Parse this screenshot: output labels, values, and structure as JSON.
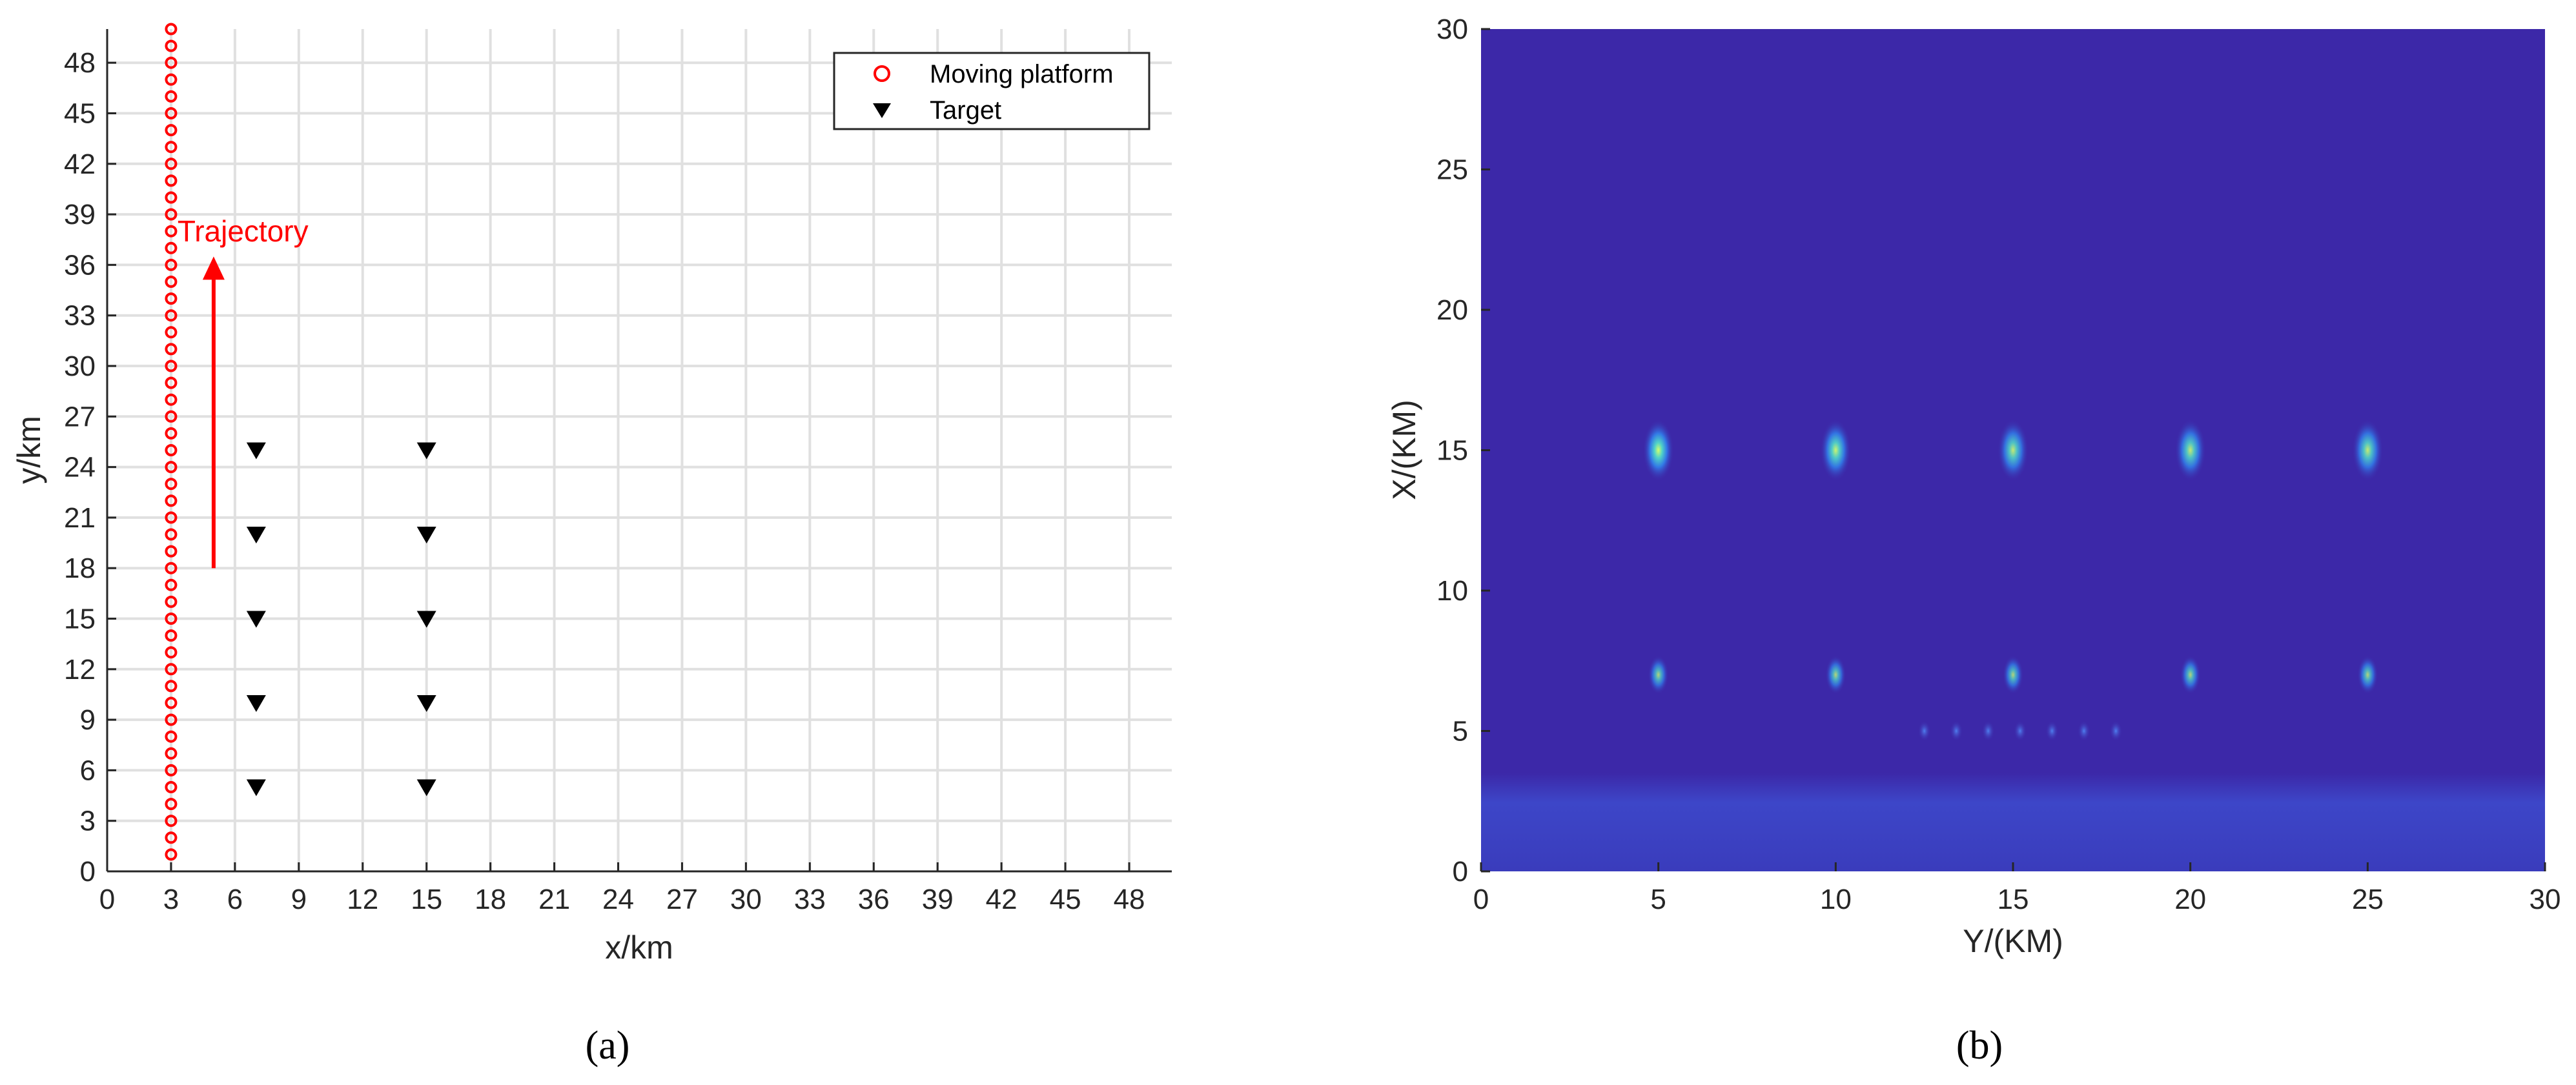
{
  "colors": {
    "platform": "#ff0000",
    "target": "#000000",
    "grid": "#e0e0e0",
    "axis": "#262626",
    "heatmap_background": "#3c28a8",
    "heatmap_peak": "#b4ff78"
  },
  "chart_data": [
    {
      "type": "scatter",
      "caption": "(a)",
      "xlabel": "x/km",
      "ylabel": "y/km",
      "xlim": [
        0,
        50
      ],
      "ylim": [
        0,
        50
      ],
      "xticks": [
        "0",
        "3",
        "6",
        "9",
        "12",
        "15",
        "18",
        "21",
        "24",
        "27",
        "30",
        "33",
        "36",
        "39",
        "42",
        "45",
        "48"
      ],
      "yticks": [
        "0",
        "3",
        "6",
        "9",
        "12",
        "15",
        "18",
        "21",
        "24",
        "27",
        "30",
        "33",
        "36",
        "39",
        "42",
        "45",
        "48"
      ],
      "grid": true,
      "legend_position": "top-right",
      "series": [
        {
          "name": "Moving platform",
          "marker": "circle-open",
          "x": [
            3
          ],
          "y_start": 1,
          "y_end": 50,
          "y_step": 1
        },
        {
          "name": "Target",
          "marker": "triangle-down",
          "points": [
            [
              7,
              5
            ],
            [
              7,
              10
            ],
            [
              7,
              15
            ],
            [
              7,
              20
            ],
            [
              7,
              25
            ],
            [
              15,
              5
            ],
            [
              15,
              10
            ],
            [
              15,
              15
            ],
            [
              15,
              20
            ],
            [
              15,
              25
            ]
          ]
        }
      ],
      "annotation": {
        "text": "Trajectory",
        "arrow_from": [
          5,
          18
        ],
        "arrow_to": [
          5,
          36.5
        ],
        "text_at": [
          3.3,
          38
        ]
      }
    },
    {
      "type": "heatmap",
      "caption": "(b)",
      "xlabel": "Y/(KM)",
      "ylabel": "X/(KM)",
      "xlim": [
        0,
        30
      ],
      "ylim": [
        0,
        30
      ],
      "xticks": [
        "0",
        "5",
        "10",
        "15",
        "20",
        "25",
        "30"
      ],
      "yticks": [
        "0",
        "5",
        "10",
        "15",
        "20",
        "25",
        "30"
      ],
      "peaks": [
        {
          "x": 5,
          "y": 15,
          "intensity": 1.0
        },
        {
          "x": 10,
          "y": 15,
          "intensity": 0.95
        },
        {
          "x": 15,
          "y": 15,
          "intensity": 0.9
        },
        {
          "x": 20,
          "y": 15,
          "intensity": 0.9
        },
        {
          "x": 25,
          "y": 15,
          "intensity": 0.9
        },
        {
          "x": 5,
          "y": 7,
          "intensity": 0.8
        },
        {
          "x": 10,
          "y": 7,
          "intensity": 0.8
        },
        {
          "x": 15,
          "y": 7,
          "intensity": 0.8
        },
        {
          "x": 20,
          "y": 7,
          "intensity": 0.8
        },
        {
          "x": 25,
          "y": 7,
          "intensity": 0.8
        }
      ],
      "clutter_band_y": [
        0,
        3.5
      ],
      "sidelobe_row_y": 5,
      "sidelobe_x": [
        12.5,
        13.4,
        14.3,
        15.2,
        16.1,
        17.0,
        17.9
      ]
    }
  ]
}
